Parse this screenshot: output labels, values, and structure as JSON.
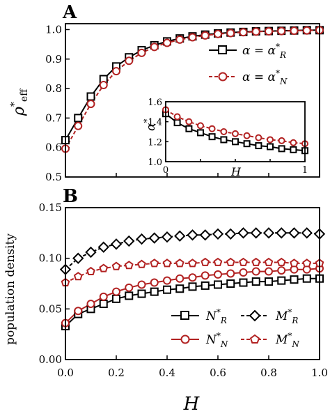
{
  "chart_data": [
    {
      "panel": "A",
      "type": "line",
      "ylabel": "ρ*eff",
      "xlim": [
        0,
        1
      ],
      "ylim": [
        0.5,
        1.02
      ],
      "yticks": [
        "0.5",
        "0.6",
        "0.7",
        "0.8",
        "0.9",
        "1.0"
      ],
      "x": [
        0.0,
        0.05,
        0.1,
        0.15,
        0.2,
        0.25,
        0.3,
        0.35,
        0.4,
        0.45,
        0.5,
        0.55,
        0.6,
        0.65,
        0.7,
        0.75,
        0.8,
        0.85,
        0.9,
        0.95,
        1.0
      ],
      "series": [
        {
          "name": "α = α*R",
          "style": "black-solid-square",
          "values": [
            0.625,
            0.7,
            0.773,
            0.832,
            0.875,
            0.906,
            0.93,
            0.947,
            0.96,
            0.97,
            0.977,
            0.983,
            0.987,
            0.99,
            0.992,
            0.994,
            0.995,
            0.996,
            0.997,
            0.998,
            0.998
          ]
        },
        {
          "name": "α = α*N",
          "style": "red-dashed-circle",
          "values": [
            0.596,
            0.673,
            0.748,
            0.812,
            0.859,
            0.894,
            0.921,
            0.941,
            0.955,
            0.966,
            0.974,
            0.98,
            0.985,
            0.988,
            0.991,
            0.993,
            0.994,
            0.995,
            0.996,
            0.997,
            0.998
          ]
        }
      ]
    },
    {
      "panel": "A-inset",
      "type": "line",
      "xlabel": "H",
      "ylabel": "α*",
      "xlim": [
        0,
        1
      ],
      "ylim": [
        1.0,
        1.6
      ],
      "xticks": [
        "0",
        "1"
      ],
      "yticks": [
        "1.0",
        "1.2",
        "1.4",
        "1.6"
      ],
      "x": [
        0.0,
        0.083,
        0.167,
        0.25,
        0.333,
        0.417,
        0.5,
        0.583,
        0.667,
        0.75,
        0.833,
        0.917,
        1.0
      ],
      "series": [
        {
          "name": "α*R",
          "style": "black-solid-square",
          "values": [
            1.48,
            1.39,
            1.33,
            1.29,
            1.25,
            1.22,
            1.2,
            1.18,
            1.16,
            1.15,
            1.13,
            1.12,
            1.11
          ]
        },
        {
          "name": "α*N",
          "style": "red-dashed-circle",
          "values": [
            1.52,
            1.45,
            1.4,
            1.36,
            1.33,
            1.3,
            1.28,
            1.26,
            1.24,
            1.22,
            1.21,
            1.19,
            1.18
          ]
        }
      ]
    },
    {
      "panel": "B",
      "type": "line",
      "xlabel": "H",
      "ylabel": "population density",
      "xlim": [
        0,
        1
      ],
      "ylim": [
        0,
        0.15
      ],
      "xticks": [
        "0.0",
        "0.2",
        "0.4",
        "0.6",
        "0.8",
        "1.0"
      ],
      "yticks": [
        "0.00",
        "0.05",
        "0.10",
        "0.15"
      ],
      "x": [
        0.0,
        0.05,
        0.1,
        0.15,
        0.2,
        0.25,
        0.3,
        0.35,
        0.4,
        0.45,
        0.5,
        0.55,
        0.6,
        0.65,
        0.7,
        0.75,
        0.8,
        0.85,
        0.9,
        0.95,
        1.0
      ],
      "series": [
        {
          "name": "N*R",
          "style": "black-solid-square",
          "values": [
            0.033,
            0.045,
            0.05,
            0.055,
            0.06,
            0.063,
            0.065,
            0.067,
            0.069,
            0.07,
            0.072,
            0.073,
            0.074,
            0.075,
            0.076,
            0.077,
            0.077,
            0.078,
            0.079,
            0.08,
            0.08
          ]
        },
        {
          "name": "M*R",
          "style": "black-dashed-diamond",
          "values": [
            0.089,
            0.1,
            0.106,
            0.111,
            0.114,
            0.117,
            0.119,
            0.12,
            0.121,
            0.122,
            0.123,
            0.123,
            0.124,
            0.124,
            0.125,
            0.125,
            0.125,
            0.125,
            0.125,
            0.125,
            0.124
          ]
        },
        {
          "name": "N*N",
          "style": "red-solid-circle",
          "values": [
            0.036,
            0.048,
            0.055,
            0.062,
            0.067,
            0.071,
            0.074,
            0.076,
            0.078,
            0.08,
            0.081,
            0.083,
            0.084,
            0.085,
            0.086,
            0.087,
            0.087,
            0.088,
            0.089,
            0.089,
            0.09
          ]
        },
        {
          "name": "M*N",
          "style": "red-dashed-pentagon",
          "values": [
            0.076,
            0.082,
            0.087,
            0.09,
            0.092,
            0.093,
            0.094,
            0.095,
            0.095,
            0.095,
            0.095,
            0.096,
            0.096,
            0.096,
            0.096,
            0.096,
            0.096,
            0.096,
            0.095,
            0.095,
            0.095
          ]
        }
      ]
    }
  ],
  "labels": {
    "panel_a": "A",
    "panel_b": "B",
    "legend_a_1": "α = α*R",
    "legend_a_2": "α = α*N",
    "legend_b_1": "N*R",
    "legend_b_2": "M*R",
    "legend_b_3": "N*N",
    "legend_b_4": "M*N"
  },
  "colors": {
    "black": "#000000",
    "red": "#b22222"
  }
}
